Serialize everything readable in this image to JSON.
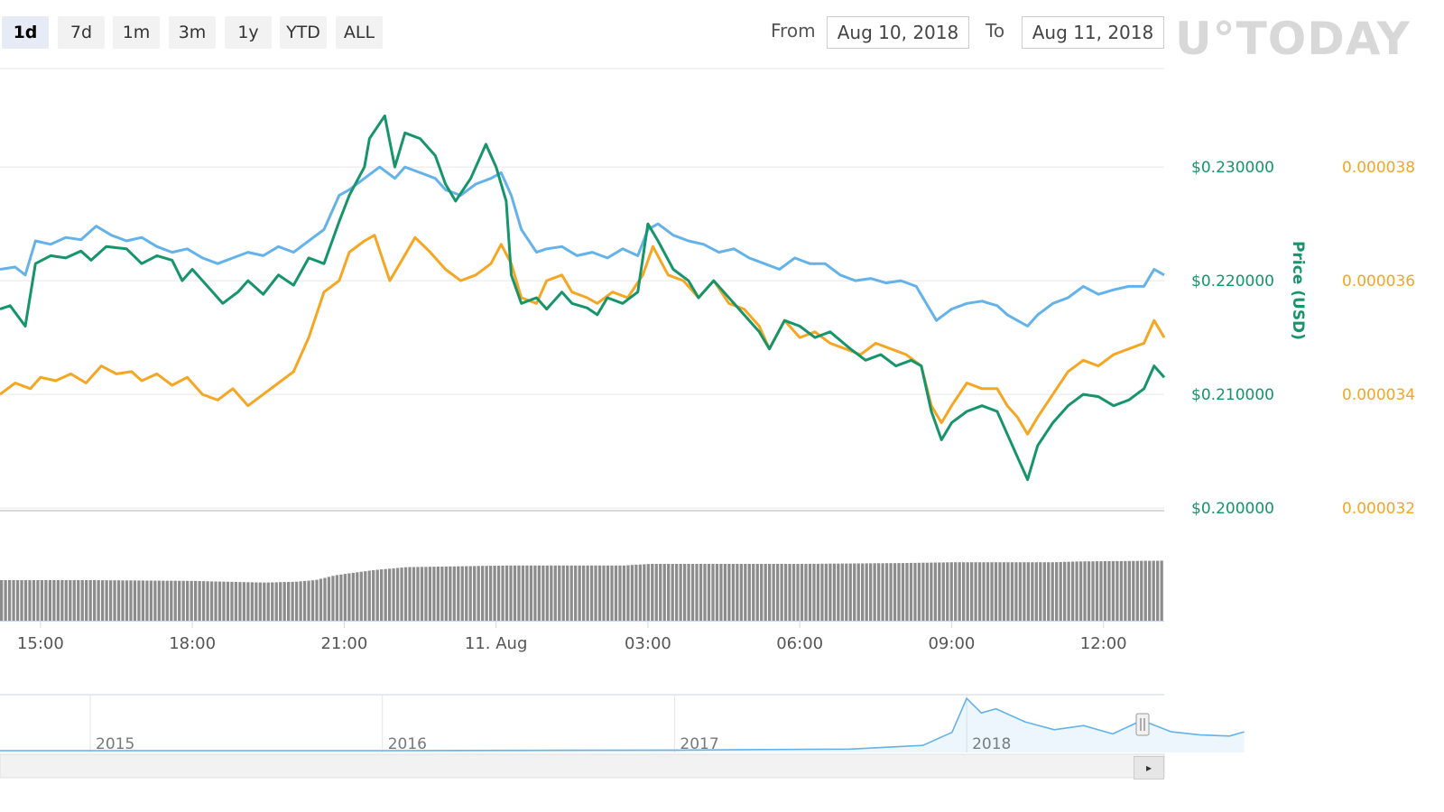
{
  "toolbar": {
    "ranges": [
      "1d",
      "7d",
      "1m",
      "3m",
      "1y",
      "YTD",
      "ALL"
    ],
    "active_range": "1d",
    "from_label": "From",
    "from_value": "Aug 10, 2018",
    "to_label": "To",
    "to_value": "Aug 11, 2018"
  },
  "watermark": "U°TODAY",
  "chart_data": {
    "type": "line",
    "title": "",
    "ylabel": "Price (USD)",
    "colors": {
      "usd": "#16946a",
      "btc": "#f5a623",
      "market_cap": "#64b2ea",
      "volume": "#8c8c8c",
      "navigator": "#64b2ea"
    },
    "x_ticks": [
      "15:00",
      "18:00",
      "21:00",
      "11. Aug",
      "03:00",
      "06:00",
      "09:00",
      "12:00"
    ],
    "x_tick_hours": [
      15,
      18,
      21,
      24,
      27,
      30,
      33,
      36
    ],
    "x_range_hours": [
      14.2,
      37.2
    ],
    "y_usd_ticks": [
      "$0.230000",
      "$0.220000",
      "$0.210000",
      "$0.200000"
    ],
    "y_usd_values": [
      0.23,
      0.22,
      0.21,
      0.2
    ],
    "y_usd_range": [
      0.19985,
      0.2385
    ],
    "y_btc_ticks": [
      "0.000038",
      "0.000036",
      "0.000034",
      "0.000032"
    ],
    "grid": true,
    "series": [
      {
        "key": "usd",
        "points": [
          [
            14.2,
            0.2175
          ],
          [
            14.4,
            0.2178
          ],
          [
            14.7,
            0.216
          ],
          [
            14.9,
            0.2215
          ],
          [
            15.2,
            0.2222
          ],
          [
            15.5,
            0.222
          ],
          [
            15.8,
            0.2226
          ],
          [
            16.0,
            0.2218
          ],
          [
            16.3,
            0.223
          ],
          [
            16.7,
            0.2228
          ],
          [
            17.0,
            0.2215
          ],
          [
            17.3,
            0.2222
          ],
          [
            17.6,
            0.2218
          ],
          [
            17.8,
            0.22
          ],
          [
            18.0,
            0.221
          ],
          [
            18.3,
            0.2195
          ],
          [
            18.6,
            0.218
          ],
          [
            18.9,
            0.219
          ],
          [
            19.1,
            0.22
          ],
          [
            19.4,
            0.2188
          ],
          [
            19.7,
            0.2205
          ],
          [
            20.0,
            0.2196
          ],
          [
            20.3,
            0.222
          ],
          [
            20.6,
            0.2215
          ],
          [
            20.9,
            0.2252
          ],
          [
            21.1,
            0.2275
          ],
          [
            21.4,
            0.23
          ],
          [
            21.5,
            0.2325
          ],
          [
            21.8,
            0.2345
          ],
          [
            22.0,
            0.23
          ],
          [
            22.2,
            0.233
          ],
          [
            22.5,
            0.2325
          ],
          [
            22.8,
            0.231
          ],
          [
            23.0,
            0.2285
          ],
          [
            23.2,
            0.227
          ],
          [
            23.5,
            0.229
          ],
          [
            23.8,
            0.232
          ],
          [
            24.0,
            0.23
          ],
          [
            24.2,
            0.227
          ],
          [
            24.3,
            0.2205
          ],
          [
            24.5,
            0.218
          ],
          [
            24.8,
            0.2185
          ],
          [
            25.0,
            0.2175
          ],
          [
            25.3,
            0.219
          ],
          [
            25.5,
            0.218
          ],
          [
            25.8,
            0.2176
          ],
          [
            26.0,
            0.217
          ],
          [
            26.2,
            0.2185
          ],
          [
            26.5,
            0.218
          ],
          [
            26.8,
            0.219
          ],
          [
            27.0,
            0.225
          ],
          [
            27.2,
            0.2235
          ],
          [
            27.5,
            0.221
          ],
          [
            27.8,
            0.22
          ],
          [
            28.0,
            0.2185
          ],
          [
            28.3,
            0.22
          ],
          [
            28.6,
            0.2185
          ],
          [
            28.9,
            0.217
          ],
          [
            29.2,
            0.2155
          ],
          [
            29.4,
            0.214
          ],
          [
            29.7,
            0.2165
          ],
          [
            30.0,
            0.216
          ],
          [
            30.3,
            0.215
          ],
          [
            30.6,
            0.2155
          ],
          [
            31.0,
            0.214
          ],
          [
            31.3,
            0.213
          ],
          [
            31.6,
            0.2135
          ],
          [
            31.9,
            0.2125
          ],
          [
            32.2,
            0.213
          ],
          [
            32.4,
            0.2125
          ],
          [
            32.6,
            0.2085
          ],
          [
            32.8,
            0.206
          ],
          [
            33.0,
            0.2075
          ],
          [
            33.3,
            0.2085
          ],
          [
            33.6,
            0.209
          ],
          [
            33.9,
            0.2085
          ],
          [
            34.1,
            0.2065
          ],
          [
            34.3,
            0.2045
          ],
          [
            34.5,
            0.2025
          ],
          [
            34.7,
            0.2055
          ],
          [
            35.0,
            0.2075
          ],
          [
            35.3,
            0.209
          ],
          [
            35.6,
            0.21
          ],
          [
            35.9,
            0.2098
          ],
          [
            36.2,
            0.209
          ],
          [
            36.5,
            0.2095
          ],
          [
            36.8,
            0.2105
          ],
          [
            37.0,
            0.2125
          ],
          [
            37.2,
            0.2115
          ]
        ]
      },
      {
        "key": "btc",
        "points": [
          [
            14.2,
            0.21
          ],
          [
            14.5,
            0.211
          ],
          [
            14.8,
            0.2105
          ],
          [
            15.0,
            0.2115
          ],
          [
            15.3,
            0.2112
          ],
          [
            15.6,
            0.2118
          ],
          [
            15.9,
            0.211
          ],
          [
            16.2,
            0.2125
          ],
          [
            16.5,
            0.2118
          ],
          [
            16.8,
            0.212
          ],
          [
            17.0,
            0.2112
          ],
          [
            17.3,
            0.2118
          ],
          [
            17.6,
            0.2108
          ],
          [
            17.9,
            0.2115
          ],
          [
            18.2,
            0.21
          ],
          [
            18.5,
            0.2095
          ],
          [
            18.8,
            0.2105
          ],
          [
            19.1,
            0.209
          ],
          [
            19.4,
            0.21
          ],
          [
            19.7,
            0.211
          ],
          [
            20.0,
            0.212
          ],
          [
            20.3,
            0.215
          ],
          [
            20.6,
            0.219
          ],
          [
            20.9,
            0.22
          ],
          [
            21.1,
            0.2225
          ],
          [
            21.4,
            0.2235
          ],
          [
            21.6,
            0.224
          ],
          [
            21.9,
            0.22
          ],
          [
            22.1,
            0.2215
          ],
          [
            22.4,
            0.2238
          ],
          [
            22.7,
            0.2225
          ],
          [
            23.0,
            0.221
          ],
          [
            23.3,
            0.22
          ],
          [
            23.6,
            0.2205
          ],
          [
            23.9,
            0.2215
          ],
          [
            24.1,
            0.2232
          ],
          [
            24.3,
            0.2215
          ],
          [
            24.5,
            0.2185
          ],
          [
            24.8,
            0.218
          ],
          [
            25.0,
            0.22
          ],
          [
            25.3,
            0.2205
          ],
          [
            25.5,
            0.219
          ],
          [
            25.8,
            0.2185
          ],
          [
            26.0,
            0.218
          ],
          [
            26.3,
            0.219
          ],
          [
            26.6,
            0.2185
          ],
          [
            26.9,
            0.2205
          ],
          [
            27.1,
            0.223
          ],
          [
            27.4,
            0.2205
          ],
          [
            27.7,
            0.22
          ],
          [
            28.0,
            0.2185
          ],
          [
            28.3,
            0.22
          ],
          [
            28.6,
            0.218
          ],
          [
            28.9,
            0.2175
          ],
          [
            29.2,
            0.216
          ],
          [
            29.4,
            0.214
          ],
          [
            29.7,
            0.2165
          ],
          [
            30.0,
            0.215
          ],
          [
            30.3,
            0.2155
          ],
          [
            30.6,
            0.2145
          ],
          [
            30.9,
            0.214
          ],
          [
            31.2,
            0.2135
          ],
          [
            31.5,
            0.2145
          ],
          [
            31.8,
            0.214
          ],
          [
            32.1,
            0.2135
          ],
          [
            32.4,
            0.2125
          ],
          [
            32.6,
            0.209
          ],
          [
            32.8,
            0.2075
          ],
          [
            33.0,
            0.209
          ],
          [
            33.3,
            0.211
          ],
          [
            33.6,
            0.2105
          ],
          [
            33.9,
            0.2105
          ],
          [
            34.1,
            0.209
          ],
          [
            34.3,
            0.208
          ],
          [
            34.5,
            0.2065
          ],
          [
            34.7,
            0.208
          ],
          [
            35.0,
            0.21
          ],
          [
            35.3,
            0.212
          ],
          [
            35.6,
            0.213
          ],
          [
            35.9,
            0.2125
          ],
          [
            36.2,
            0.2135
          ],
          [
            36.5,
            0.214
          ],
          [
            36.8,
            0.2145
          ],
          [
            37.0,
            0.2165
          ],
          [
            37.2,
            0.215
          ]
        ]
      },
      {
        "key": "market_cap",
        "points": [
          [
            14.2,
            0.221
          ],
          [
            14.5,
            0.2212
          ],
          [
            14.7,
            0.2205
          ],
          [
            14.9,
            0.2235
          ],
          [
            15.2,
            0.2232
          ],
          [
            15.5,
            0.2238
          ],
          [
            15.8,
            0.2236
          ],
          [
            16.1,
            0.2248
          ],
          [
            16.4,
            0.224
          ],
          [
            16.7,
            0.2235
          ],
          [
            17.0,
            0.2238
          ],
          [
            17.3,
            0.223
          ],
          [
            17.6,
            0.2225
          ],
          [
            17.9,
            0.2228
          ],
          [
            18.2,
            0.222
          ],
          [
            18.5,
            0.2215
          ],
          [
            18.8,
            0.222
          ],
          [
            19.1,
            0.2225
          ],
          [
            19.4,
            0.2222
          ],
          [
            19.7,
            0.223
          ],
          [
            20.0,
            0.2225
          ],
          [
            20.3,
            0.2235
          ],
          [
            20.6,
            0.2245
          ],
          [
            20.9,
            0.2275
          ],
          [
            21.1,
            0.228
          ],
          [
            21.4,
            0.229
          ],
          [
            21.7,
            0.23
          ],
          [
            22.0,
            0.229
          ],
          [
            22.2,
            0.23
          ],
          [
            22.5,
            0.2295
          ],
          [
            22.8,
            0.229
          ],
          [
            23.0,
            0.228
          ],
          [
            23.3,
            0.2275
          ],
          [
            23.6,
            0.2285
          ],
          [
            23.9,
            0.229
          ],
          [
            24.1,
            0.2295
          ],
          [
            24.3,
            0.2275
          ],
          [
            24.5,
            0.2245
          ],
          [
            24.8,
            0.2225
          ],
          [
            25.0,
            0.2228
          ],
          [
            25.3,
            0.223
          ],
          [
            25.6,
            0.2222
          ],
          [
            25.9,
            0.2225
          ],
          [
            26.2,
            0.222
          ],
          [
            26.5,
            0.2228
          ],
          [
            26.8,
            0.2222
          ],
          [
            27.0,
            0.2245
          ],
          [
            27.2,
            0.225
          ],
          [
            27.5,
            0.224
          ],
          [
            27.8,
            0.2235
          ],
          [
            28.1,
            0.2232
          ],
          [
            28.4,
            0.2225
          ],
          [
            28.7,
            0.2228
          ],
          [
            29.0,
            0.222
          ],
          [
            29.3,
            0.2215
          ],
          [
            29.6,
            0.221
          ],
          [
            29.9,
            0.222
          ],
          [
            30.2,
            0.2215
          ],
          [
            30.5,
            0.2215
          ],
          [
            30.8,
            0.2205
          ],
          [
            31.1,
            0.22
          ],
          [
            31.4,
            0.2202
          ],
          [
            31.7,
            0.2198
          ],
          [
            32.0,
            0.22
          ],
          [
            32.3,
            0.2195
          ],
          [
            32.5,
            0.218
          ],
          [
            32.7,
            0.2165
          ],
          [
            33.0,
            0.2175
          ],
          [
            33.3,
            0.218
          ],
          [
            33.6,
            0.2182
          ],
          [
            33.9,
            0.2178
          ],
          [
            34.1,
            0.217
          ],
          [
            34.3,
            0.2165
          ],
          [
            34.5,
            0.216
          ],
          [
            34.7,
            0.217
          ],
          [
            35.0,
            0.218
          ],
          [
            35.3,
            0.2185
          ],
          [
            35.6,
            0.2195
          ],
          [
            35.9,
            0.2188
          ],
          [
            36.2,
            0.2192
          ],
          [
            36.5,
            0.2195
          ],
          [
            36.8,
            0.2195
          ],
          [
            37.0,
            0.221
          ],
          [
            37.2,
            0.2205
          ]
        ]
      }
    ],
    "volume": [
      [
        14.2,
        0.5
      ],
      [
        16.0,
        0.5
      ],
      [
        18.0,
        0.49
      ],
      [
        19.4,
        0.47
      ],
      [
        20.0,
        0.48
      ],
      [
        20.4,
        0.5
      ],
      [
        20.8,
        0.56
      ],
      [
        21.5,
        0.62
      ],
      [
        22.2,
        0.66
      ],
      [
        23.2,
        0.67
      ],
      [
        24.2,
        0.68
      ],
      [
        25.5,
        0.68
      ],
      [
        26.5,
        0.68
      ],
      [
        27.0,
        0.7
      ],
      [
        28.0,
        0.7
      ],
      [
        30.0,
        0.7
      ],
      [
        32.0,
        0.71
      ],
      [
        33.0,
        0.72
      ],
      [
        35.0,
        0.72
      ],
      [
        35.5,
        0.73
      ],
      [
        37.2,
        0.74
      ]
    ],
    "navigator": {
      "years": [
        "2015",
        "2016",
        "2017",
        "2018"
      ],
      "points": [
        [
          2014.6,
          0.0
        ],
        [
          2015.0,
          0.0
        ],
        [
          2016.0,
          0.0
        ],
        [
          2017.0,
          0.01
        ],
        [
          2017.6,
          0.03
        ],
        [
          2017.85,
          0.1
        ],
        [
          2017.95,
          0.35
        ],
        [
          2018.0,
          1.0
        ],
        [
          2018.05,
          0.72
        ],
        [
          2018.1,
          0.8
        ],
        [
          2018.2,
          0.55
        ],
        [
          2018.3,
          0.4
        ],
        [
          2018.4,
          0.48
        ],
        [
          2018.5,
          0.32
        ],
        [
          2018.6,
          0.58
        ],
        [
          2018.7,
          0.36
        ],
        [
          2018.8,
          0.3
        ],
        [
          2018.9,
          0.28
        ],
        [
          2018.95,
          0.36
        ]
      ]
    }
  }
}
